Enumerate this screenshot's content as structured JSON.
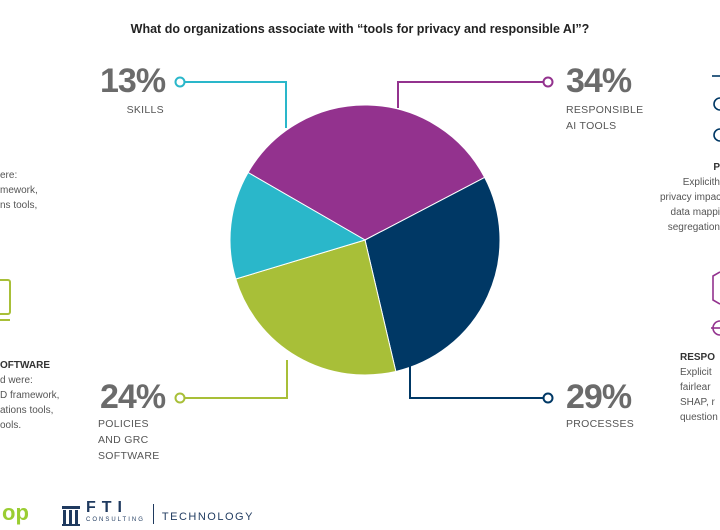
{
  "chart_data": {
    "type": "pie",
    "title": "What do organizations associate with “tools for privacy and responsible AI”?",
    "slices": [
      {
        "label": "RESPONSIBLE AI TOOLS",
        "display": "34%",
        "value": 34,
        "color": "#93328e"
      },
      {
        "label": "PROCESSES",
        "display": "29%",
        "value": 29,
        "color": "#003865"
      },
      {
        "label": "POLICIES AND GRC SOFTWARE",
        "display": "24%",
        "value": 24,
        "color": "#a8bf38"
      },
      {
        "label": "SKILLS",
        "display": "13%",
        "value": 13,
        "color": "#2ab7ca"
      }
    ]
  },
  "left_fragments": {
    "a1": "ere:",
    "a2": "mework,",
    "a3": "ns tools,",
    "b_title": "OFTWARE",
    "b1": "d were:",
    "b2": "D framework,",
    "b3": "ations tools,",
    "b4": "ools."
  },
  "right_fragments": {
    "p_title": "P",
    "p1": "Explicith",
    "p2": "privacy impac",
    "p3": "data mappi",
    "p4": "segregation",
    "r_title": "RESPO",
    "r1": "Explicit",
    "r2": "fairlear",
    "r3": "SHAP, r",
    "r4": "question"
  },
  "footer": {
    "left_brand": "op",
    "fti_name": "FTI",
    "fti_sub": "CONSULTING",
    "fti_tech": "TECHNOLOGY"
  }
}
